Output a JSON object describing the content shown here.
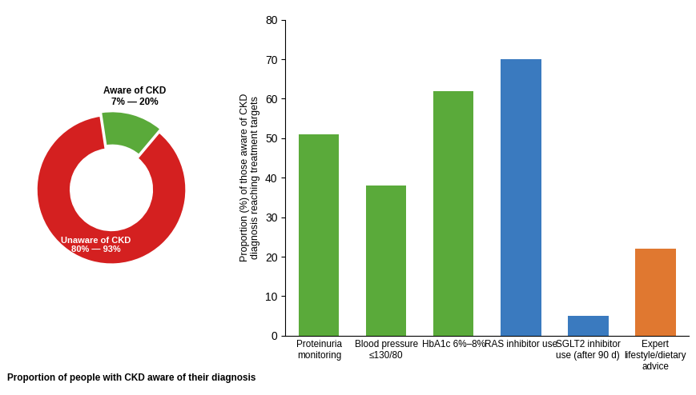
{
  "chart_data": [
    {
      "type": "pie",
      "title": "Proportion of people with CKD aware of their diagnosis",
      "categories": [
        "Aware of CKD\n7% — 20%",
        "Unaware of CKD\n80% — 93%"
      ],
      "values": [
        13.5,
        86.5
      ],
      "colors": [
        "#5aaa3a",
        "#d42020"
      ]
    },
    {
      "type": "bar",
      "categories": [
        "Proteinuria\nmonitoring",
        "Blood pressure\n≤130/80",
        "HbA1c 6%–8%",
        "RAS inhibitor use",
        "SGLT2 inhibitor\nuse (after 90 d)",
        "Expert\nlifestyle/dietary\nadvice"
      ],
      "values": [
        51,
        38,
        62,
        70,
        5,
        22
      ],
      "colors": [
        "#5aaa3a",
        "#5aaa3a",
        "#5aaa3a",
        "#3a7abf",
        "#3a7abf",
        "#e07830"
      ],
      "ylabel": "Proportion (%) of those aware of CKD\ndiagnosis reaching treatment targets",
      "ylim": [
        0,
        80
      ],
      "yticks": [
        0,
        10,
        20,
        30,
        40,
        50,
        60,
        70,
        80
      ]
    }
  ]
}
